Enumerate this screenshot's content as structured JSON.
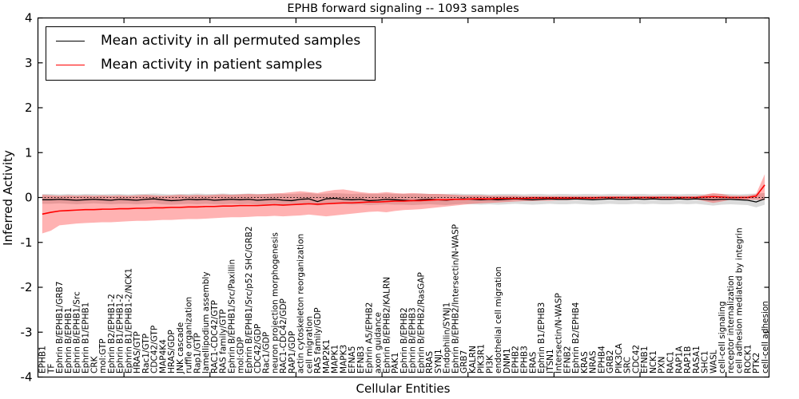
{
  "title": "EPHB forward signaling -- 1093 samples",
  "axes": {
    "ylabel": "Inferred Activity",
    "xlabel": "Cellular Entities",
    "yticks": [
      "4",
      "3",
      "2",
      "1",
      "0",
      "-1",
      "-2",
      "-3",
      "-4"
    ]
  },
  "legend": {
    "items": [
      {
        "label": "Mean activity in all permuted samples",
        "color": "#000000"
      },
      {
        "label": "Mean activity in patient samples",
        "color": "#ff0000"
      }
    ]
  },
  "chart_data": {
    "type": "line",
    "title": "EPHB forward signaling -- 1093 samples",
    "xlabel": "Cellular Entities",
    "ylabel": "Inferred Activity",
    "ylim": [
      -4,
      4
    ],
    "yticks": [
      4,
      3,
      2,
      1,
      0,
      -1,
      -2,
      -3,
      -4
    ],
    "x_major_tick_interval": 10,
    "grid": false,
    "zero_line_dotted": true,
    "legend_position": "upper left",
    "categories": [
      "EPHB1",
      "TF",
      "Ephrin B/EPHB1/GRB7",
      "Ephrin B/EPHB1",
      "Ephrin B/EPHB1/Src",
      "Ephrin B1/EPHB1",
      "CRK",
      "mol:GTP",
      "Ephrin B2/EPHB1-2",
      "Ephrin B1/EPHB1-2",
      "Ephrin B1/EPHB1-2/NCK1",
      "HRAS/GTP",
      "Rac1/GTP",
      "CDC42/GTP",
      "MAP4K4",
      "HRAS/GDP",
      "JNK cascade",
      "ruffle organization",
      "Rap1/GTP",
      "lamellipodium assembly",
      "RAC1-CDC42/GTP",
      "RAS family/GTP",
      "Ephrin B/EPHB1/Src/Paxillin",
      "mol:GDP",
      "Ephrin B/EPHB1/Src/p52 SHC/GRB2",
      "CDC42/GDP",
      "Rac1/GDP",
      "neuron projection morphogenesis",
      "RAC1-CDC42/GDP",
      "RAP1/GDP",
      "actin cytoskeleton reorganization",
      "cell migration",
      "RAS family/GDP",
      "MAP2K1",
      "MAPK1",
      "MAPK3",
      "EFNA5",
      "EFNB3",
      "Ephrin A5/EPHB2",
      "axon guidance",
      "Ephrin B/EPHB2/KALRN",
      "PAK1",
      "Ephrin B/EPHB2",
      "Ephrin B/EPHB3",
      "Ephrin B/EPHB2/RasGAP",
      "RRAS",
      "SYNJ1",
      "Endophilin/SYNJ1",
      "Ephrin B/EPHB2/Intersectin/N-WASP",
      "GRB7",
      "KALRN",
      "PIK3R1",
      "PI3K",
      "endothelial cell migration",
      "DNM1",
      "EPHB2",
      "EPHB3",
      "ERAS",
      "Ephrin B1/EPHB3",
      "ITSN1",
      "Intersectin/N-WASP",
      "EFNB2",
      "Ephrin B2/EPHB4",
      "KRAS",
      "NRAS",
      "EPHB4",
      "GRB2",
      "PIK3CA",
      "SRC",
      "CDC42",
      "EFNB1",
      "NCK1",
      "PXN",
      "RAC1",
      "RAP1A",
      "RAP1B",
      "RASA1",
      "SHC1",
      "WASL",
      "cell-cell signaling",
      "receptor internalization",
      "cell adhesion mediated by integrin",
      "ROCK1",
      "PTK2",
      "cell-cell adhesion"
    ],
    "series": [
      {
        "name": "Mean activity in all permuted samples",
        "color": "#000000",
        "values": [
          -0.05,
          -0.05,
          -0.04,
          -0.05,
          -0.06,
          -0.05,
          -0.04,
          -0.05,
          -0.06,
          -0.04,
          -0.05,
          -0.06,
          -0.04,
          -0.03,
          -0.05,
          -0.07,
          -0.06,
          -0.04,
          -0.05,
          -0.04,
          -0.06,
          -0.05,
          -0.04,
          -0.05,
          -0.04,
          -0.06,
          -0.05,
          -0.04,
          -0.06,
          -0.07,
          -0.04,
          -0.03,
          -0.09,
          -0.03,
          -0.02,
          -0.04,
          -0.05,
          -0.04,
          -0.07,
          -0.06,
          -0.04,
          -0.05,
          -0.06,
          -0.07,
          -0.05,
          -0.04,
          -0.05,
          -0.06,
          -0.04,
          -0.03,
          -0.04,
          -0.05,
          -0.04,
          -0.05,
          -0.04,
          -0.03,
          -0.04,
          -0.05,
          -0.04,
          -0.03,
          -0.04,
          -0.04,
          -0.03,
          -0.04,
          -0.05,
          -0.04,
          -0.03,
          -0.04,
          -0.04,
          -0.03,
          -0.04,
          -0.03,
          -0.04,
          -0.04,
          -0.03,
          -0.04,
          -0.03,
          -0.04,
          -0.05,
          -0.04,
          -0.04,
          -0.05,
          -0.06,
          -0.1,
          -0.03
        ]
      },
      {
        "name": "Mean activity in patient samples",
        "color": "#ff0000",
        "values": [
          -0.37,
          -0.33,
          -0.3,
          -0.29,
          -0.28,
          -0.27,
          -0.27,
          -0.26,
          -0.26,
          -0.25,
          -0.25,
          -0.24,
          -0.24,
          -0.23,
          -0.23,
          -0.22,
          -0.22,
          -0.21,
          -0.21,
          -0.2,
          -0.2,
          -0.19,
          -0.19,
          -0.18,
          -0.18,
          -0.18,
          -0.17,
          -0.16,
          -0.17,
          -0.16,
          -0.15,
          -0.14,
          -0.15,
          -0.14,
          -0.13,
          -0.12,
          -0.12,
          -0.11,
          -0.1,
          -0.1,
          -0.09,
          -0.08,
          -0.08,
          -0.07,
          -0.07,
          -0.06,
          -0.05,
          -0.05,
          -0.04,
          -0.04,
          -0.03,
          -0.03,
          -0.03,
          -0.02,
          -0.02,
          -0.02,
          -0.02,
          -0.01,
          -0.01,
          -0.01,
          -0.01,
          -0.01,
          -0.01,
          -0.01,
          -0.01,
          0.0,
          0.0,
          0.0,
          0.0,
          0.0,
          0.0,
          0.0,
          0.0,
          0.0,
          0.0,
          0.0,
          0.0,
          0.01,
          0.02,
          0.01,
          0.0,
          0.0,
          0.0,
          0.03,
          0.28
        ]
      }
    ],
    "bands": [
      {
        "name": "permuted samples range",
        "color": "#000000",
        "opacity": 0.14,
        "upper": [
          0.08,
          0.08,
          0.07,
          0.08,
          0.07,
          0.08,
          0.08,
          0.07,
          0.08,
          0.08,
          0.07,
          0.08,
          0.08,
          0.09,
          0.08,
          0.07,
          0.08,
          0.08,
          0.09,
          0.08,
          0.08,
          0.09,
          0.08,
          0.08,
          0.09,
          0.08,
          0.08,
          0.09,
          0.08,
          0.08,
          0.09,
          0.1,
          0.08,
          0.09,
          0.1,
          0.09,
          0.08,
          0.09,
          0.08,
          0.08,
          0.09,
          0.08,
          0.08,
          0.08,
          0.09,
          0.08,
          0.08,
          0.08,
          0.09,
          0.08,
          0.08,
          0.08,
          0.07,
          0.08,
          0.08,
          0.08,
          0.07,
          0.08,
          0.08,
          0.07,
          0.08,
          0.08,
          0.07,
          0.08,
          0.08,
          0.07,
          0.08,
          0.08,
          0.07,
          0.08,
          0.08,
          0.07,
          0.08,
          0.08,
          0.07,
          0.08,
          0.08,
          0.07,
          0.08,
          0.08,
          0.08,
          0.07,
          0.08,
          0.09,
          0.1
        ],
        "lower": [
          -0.14,
          -0.14,
          -0.13,
          -0.14,
          -0.15,
          -0.14,
          -0.13,
          -0.14,
          -0.15,
          -0.14,
          -0.14,
          -0.15,
          -0.14,
          -0.13,
          -0.15,
          -0.16,
          -0.15,
          -0.14,
          -0.15,
          -0.14,
          -0.15,
          -0.15,
          -0.14,
          -0.15,
          -0.14,
          -0.16,
          -0.15,
          -0.14,
          -0.16,
          -0.17,
          -0.15,
          -0.14,
          -0.18,
          -0.15,
          -0.14,
          -0.15,
          -0.16,
          -0.15,
          -0.17,
          -0.16,
          -0.15,
          -0.16,
          -0.16,
          -0.17,
          -0.16,
          -0.15,
          -0.16,
          -0.17,
          -0.15,
          -0.14,
          -0.15,
          -0.16,
          -0.15,
          -0.16,
          -0.15,
          -0.14,
          -0.15,
          -0.16,
          -0.15,
          -0.14,
          -0.15,
          -0.15,
          -0.14,
          -0.15,
          -0.16,
          -0.15,
          -0.14,
          -0.15,
          -0.15,
          -0.14,
          -0.15,
          -0.14,
          -0.15,
          -0.15,
          -0.14,
          -0.15,
          -0.14,
          -0.16,
          -0.18,
          -0.16,
          -0.15,
          -0.16,
          -0.17,
          -0.22,
          -0.16
        ]
      },
      {
        "name": "patient samples range",
        "color": "#ff0000",
        "opacity": 0.3,
        "upper": [
          0.06,
          0.05,
          0.04,
          0.05,
          0.04,
          0.05,
          0.04,
          0.05,
          0.04,
          0.05,
          0.04,
          0.05,
          0.06,
          0.05,
          0.04,
          0.05,
          0.06,
          0.05,
          0.06,
          0.05,
          0.06,
          0.07,
          0.06,
          0.07,
          0.08,
          0.07,
          0.08,
          0.09,
          0.1,
          0.12,
          0.14,
          0.12,
          0.1,
          0.14,
          0.17,
          0.18,
          0.15,
          0.12,
          0.1,
          0.1,
          0.12,
          0.1,
          0.09,
          0.1,
          0.09,
          0.08,
          0.08,
          0.07,
          0.06,
          0.05,
          0.05,
          0.05,
          0.04,
          0.04,
          0.04,
          0.04,
          0.03,
          0.03,
          0.03,
          0.03,
          0.03,
          0.03,
          0.03,
          0.03,
          0.03,
          0.03,
          0.03,
          0.03,
          0.03,
          0.03,
          0.03,
          0.03,
          0.03,
          0.03,
          0.03,
          0.03,
          0.03,
          0.06,
          0.1,
          0.08,
          0.04,
          0.04,
          0.04,
          0.08,
          0.52
        ],
        "lower": [
          -0.8,
          -0.74,
          -0.62,
          -0.6,
          -0.58,
          -0.57,
          -0.56,
          -0.55,
          -0.55,
          -0.54,
          -0.53,
          -0.52,
          -0.52,
          -0.51,
          -0.5,
          -0.5,
          -0.49,
          -0.48,
          -0.48,
          -0.47,
          -0.46,
          -0.45,
          -0.44,
          -0.44,
          -0.43,
          -0.42,
          -0.42,
          -0.41,
          -0.42,
          -0.41,
          -0.4,
          -0.38,
          -0.4,
          -0.42,
          -0.4,
          -0.38,
          -0.36,
          -0.34,
          -0.32,
          -0.31,
          -0.33,
          -0.3,
          -0.28,
          -0.27,
          -0.26,
          -0.24,
          -0.22,
          -0.2,
          -0.18,
          -0.16,
          -0.14,
          -0.13,
          -0.12,
          -0.11,
          -0.1,
          -0.09,
          -0.08,
          -0.08,
          -0.07,
          -0.07,
          -0.06,
          -0.06,
          -0.05,
          -0.05,
          -0.05,
          -0.05,
          -0.04,
          -0.04,
          -0.04,
          -0.04,
          -0.04,
          -0.04,
          -0.04,
          -0.04,
          -0.04,
          -0.04,
          -0.04,
          -0.08,
          -0.12,
          -0.09,
          -0.05,
          -0.04,
          -0.05,
          -0.05,
          -0.06
        ]
      }
    ]
  }
}
